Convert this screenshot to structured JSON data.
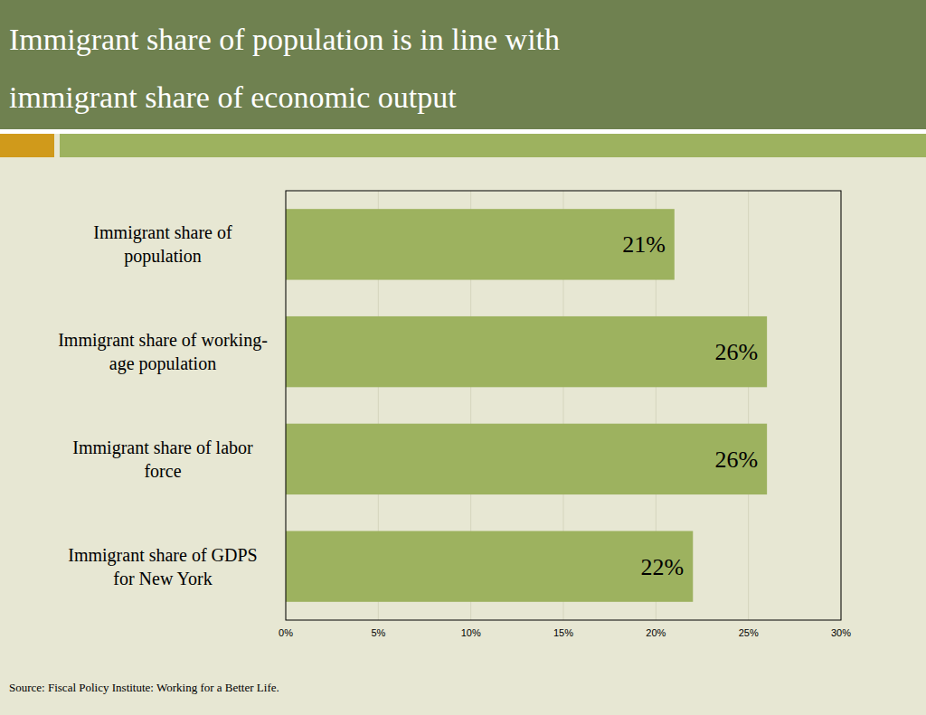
{
  "chart_data": {
    "type": "bar",
    "title": "Immigrant share of population is in line with immigrant share of economic output",
    "categories": [
      "Immigrant share of population",
      "Immigrant share of working-age population",
      "Immigrant share of labor force",
      "Immigrant share of GDPS for New York"
    ],
    "values": [
      21,
      26,
      26,
      22
    ],
    "value_labels": [
      "21%",
      "26%",
      "26%",
      "22%"
    ],
    "color": "#9db25f",
    "orientation": "horizontal",
    "data_labels": true,
    "grid": true,
    "xlim": [
      0,
      30
    ],
    "xticks": [
      {
        "value": 0,
        "label": "0%"
      },
      {
        "value": 5,
        "label": "5%"
      },
      {
        "value": 10,
        "label": "10%"
      },
      {
        "value": 15,
        "label": "15%"
      },
      {
        "value": 20,
        "label": "20%"
      },
      {
        "value": 25,
        "label": "25%"
      },
      {
        "value": 30,
        "label": "30%"
      }
    ],
    "source": "Source: Fiscal Policy Institute: Working for a Better Life."
  }
}
